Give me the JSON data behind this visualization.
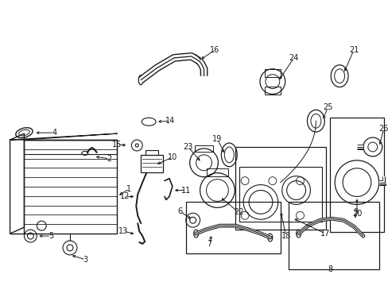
{
  "background_color": "#ffffff",
  "line_color": "#1a1a1a",
  "fig_width": 4.89,
  "fig_height": 3.6,
  "dpi": 100,
  "label_fontsize": 7.0
}
